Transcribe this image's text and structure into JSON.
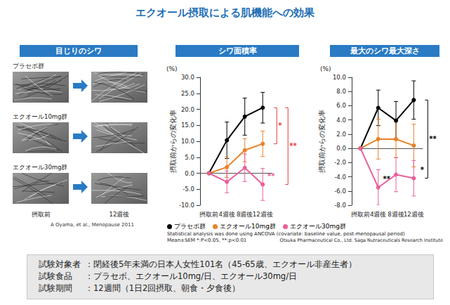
{
  "title": "エクオール摂取による肌機能への効果",
  "photo_panel": {
    "title": "目じりのシワ",
    "groups": [
      "プラセボ群",
      "エクオール10mg群",
      "エクオール30mg群"
    ],
    "before": "摂取前",
    "after": "12週後",
    "citation": "A Oyama, et al., Menopause 2011"
  },
  "chart_data": [
    {
      "type": "line",
      "title": "シワ面積率",
      "yunit": "(%)",
      "ylabel": "摂取前からの変化率",
      "categories": [
        "摂取前",
        "4週後",
        "8週後",
        "12週後"
      ],
      "series": [
        {
          "name": "プラセボ群",
          "color": "#000000",
          "values": [
            0,
            10.3,
            17.7,
            20.5
          ],
          "errors": [
            0,
            5.7,
            5.8,
            4.8
          ]
        },
        {
          "name": "エクオール10mg群",
          "color": "#e8822a",
          "values": [
            0,
            1.9,
            7.2,
            9.2
          ],
          "errors": [
            0,
            3.2,
            3.6,
            4.0
          ]
        },
        {
          "name": "エクオール30mg群",
          "color": "#e8609a",
          "values": [
            0,
            -2.7,
            1.7,
            -3.5
          ],
          "errors": [
            0,
            3.4,
            4.3,
            5.0
          ]
        }
      ],
      "ylim": [
        -10,
        30
      ],
      "yticks": [
        {
          "value": -10,
          "label": "-10.0"
        },
        {
          "value": -5,
          "label": "-5.0"
        },
        {
          "value": 0,
          "label": "0.0"
        },
        {
          "value": 5,
          "label": "5.0"
        },
        {
          "value": 10,
          "label": "10.0"
        },
        {
          "value": 15,
          "label": "15.0"
        },
        {
          "value": 20,
          "label": "20.0"
        },
        {
          "value": 25,
          "label": "25.0"
        },
        {
          "value": 30,
          "label": "30.0"
        }
      ],
      "grid": false,
      "legend": "bottom",
      "marker": "circle",
      "line_style": "solid",
      "brackets": [
        {
          "text": "*",
          "color": "#e8383d",
          "from": "プラセボ群",
          "to": "エクオール10mg群",
          "category": "12週後"
        },
        {
          "text": "**",
          "color": "#e8383d",
          "from": "プラセボ群",
          "to": "エクオール30mg群",
          "category": "12週後"
        }
      ],
      "annotations": [
        {
          "text": "**",
          "color": "#e8609a",
          "series": "エクオール30mg群",
          "category": "12週後"
        }
      ]
    },
    {
      "type": "line",
      "title": "最大のシワ最大深さ",
      "yunit": "(%)",
      "ylabel": "摂取前からの変化率",
      "categories": [
        "摂取前",
        "4週後",
        "8週後",
        "12週後"
      ],
      "series": [
        {
          "name": "プラセボ群",
          "color": "#000000",
          "values": [
            0,
            5.7,
            3.9,
            6.8
          ],
          "errors": [
            0,
            2.5,
            2.7,
            2.7
          ]
        },
        {
          "name": "エクオール10mg群",
          "color": "#e8822a",
          "values": [
            0,
            1.3,
            1.3,
            0.4
          ],
          "errors": [
            0,
            2.8,
            2.6,
            3.0
          ]
        },
        {
          "name": "エクオール30mg群",
          "color": "#e8609a",
          "values": [
            0,
            -5.5,
            -3.7,
            -4.2
          ],
          "errors": [
            0,
            2.5,
            2.4,
            2.5
          ]
        }
      ],
      "ylim": [
        -8,
        10
      ],
      "yticks": [
        {
          "value": -8,
          "label": "-8.0"
        },
        {
          "value": -6,
          "label": "-6.0"
        },
        {
          "value": -4,
          "label": "-4.0"
        },
        {
          "value": -2,
          "label": "-2.0"
        },
        {
          "value": 0,
          "label": "0.0"
        },
        {
          "value": 2,
          "label": "2.0"
        },
        {
          "value": 4,
          "label": "4.0"
        },
        {
          "value": 6,
          "label": "6.0"
        },
        {
          "value": 8,
          "label": "8.0"
        },
        {
          "value": 10,
          "label": "10.0"
        }
      ],
      "grid": false,
      "marker": "circle",
      "line_style": "solid",
      "brackets": [
        {
          "text": "**",
          "color": "#000000",
          "from": "プラセボ群",
          "to": "エクオール30mg群",
          "category": "12週後"
        }
      ],
      "annotations": [
        {
          "text": "**",
          "color": "#000000",
          "series": "エクオール30mg群",
          "category": "4週後"
        },
        {
          "text": "*",
          "color": "#000000",
          "series": "エクオール30mg群",
          "category": "12週後"
        }
      ]
    }
  ],
  "notes": [
    "Statistical analysis was done using ANCOVA (covariate: baseline value, post-menopausal period)",
    "Mean±SEM  *:P<0.05,  **:p<0.01"
  ],
  "credit": "Otsuka Pharmaceutical Co., Ltd.  Saga Nutraceuticals Research Institute",
  "study": [
    {
      "label": "試験対象者",
      "text": "：閉経後5年未満の日本人女性101名（45-65歳、エクオール非産生者）"
    },
    {
      "label": "試験食品",
      "text": "：プラセボ、エクオール10mg/日、エクオール30mg/日"
    },
    {
      "label": "試験期間",
      "text": "：12週間（1日2回摂取、朝食・夕食後）"
    }
  ]
}
